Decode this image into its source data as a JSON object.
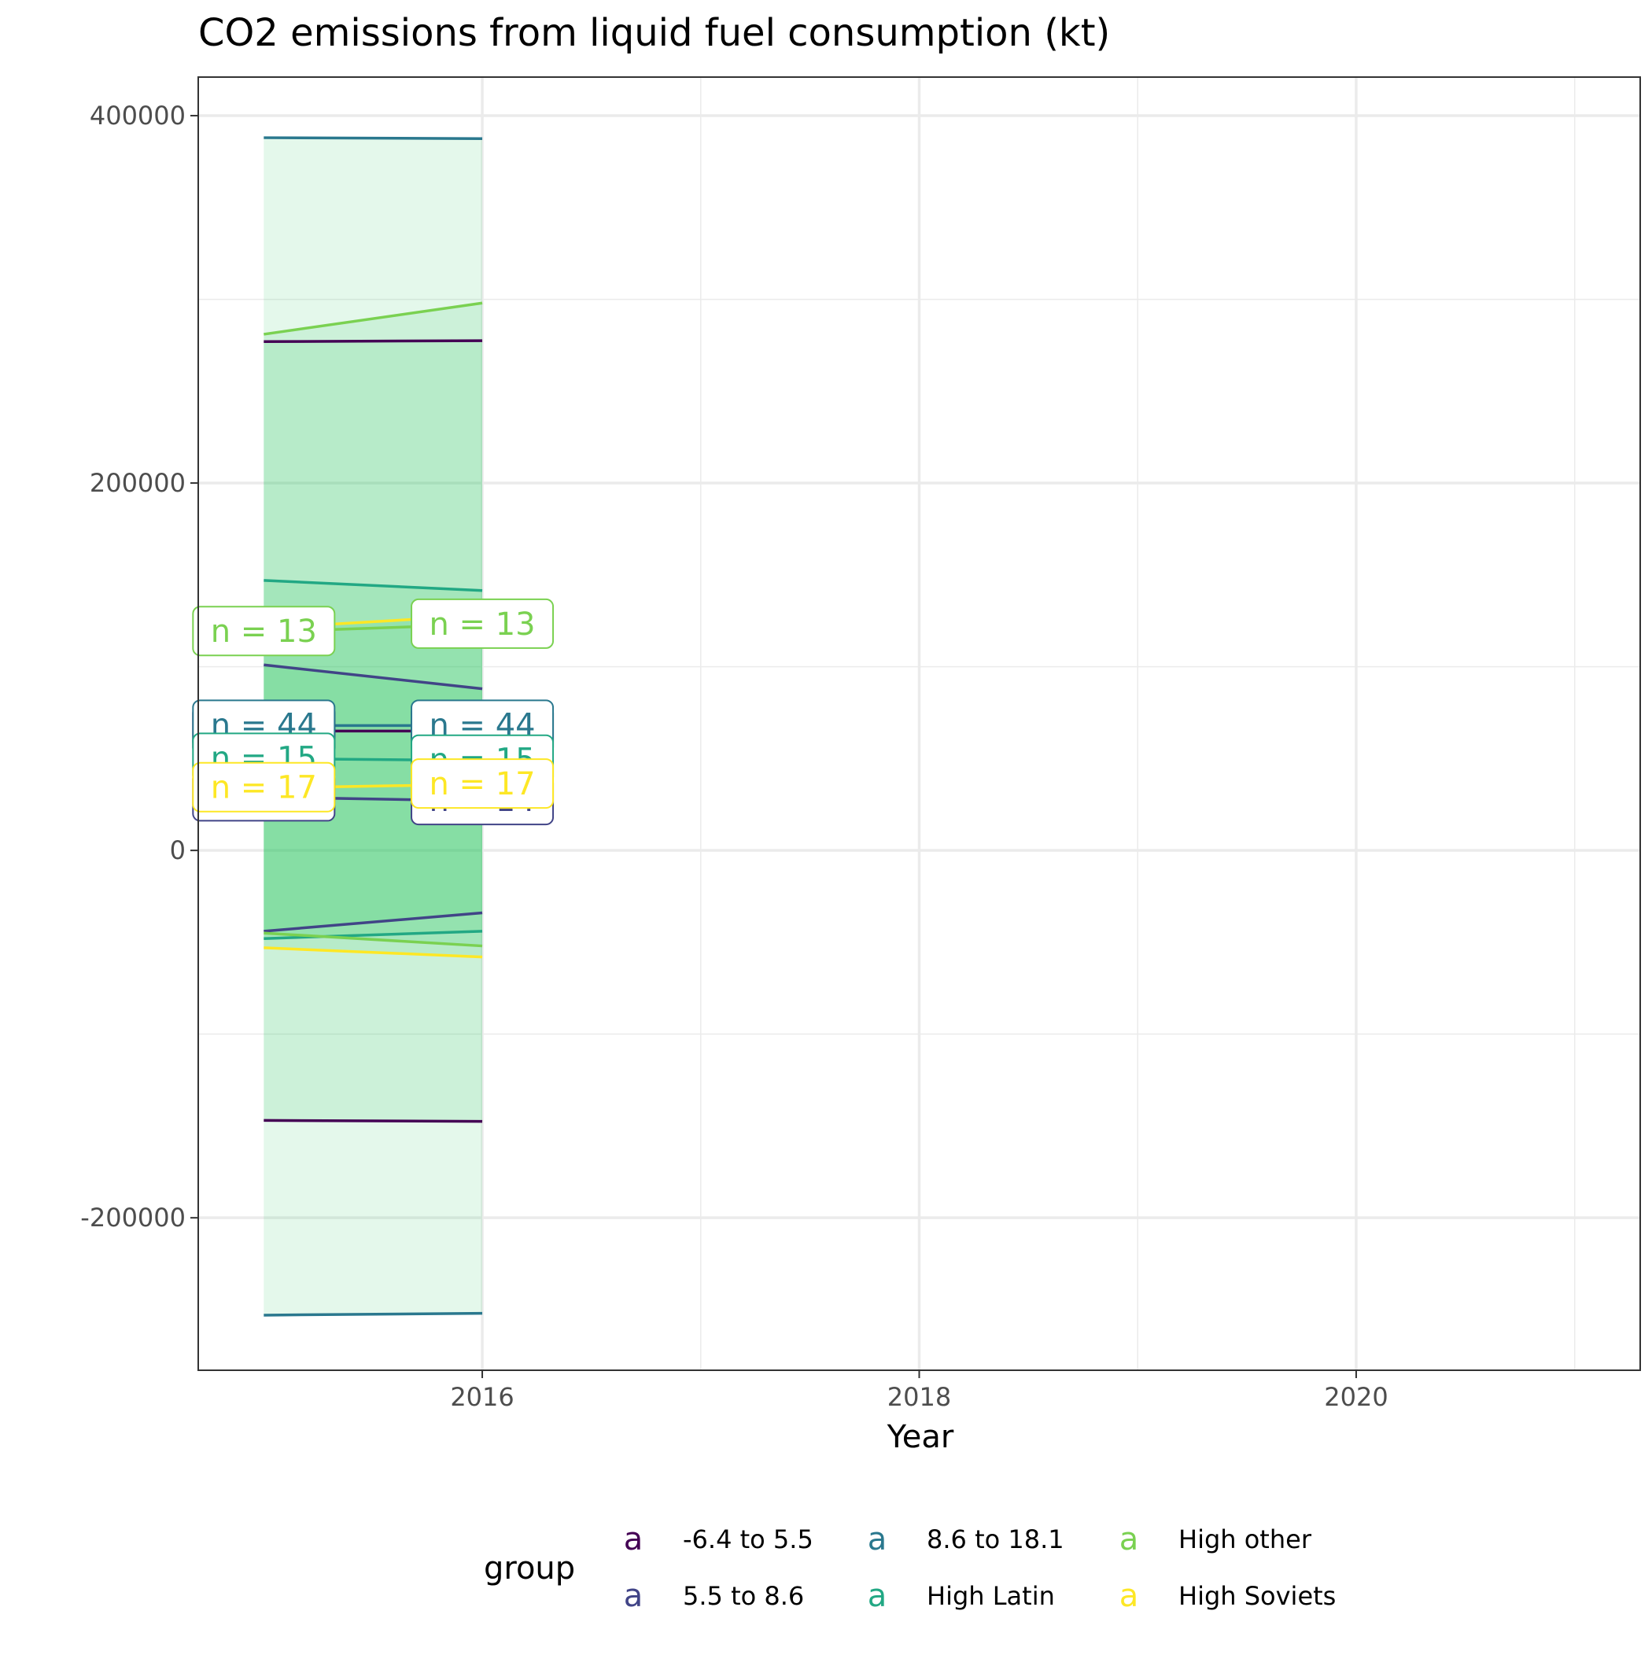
{
  "chart_data": {
    "type": "line",
    "title": "CO2 emissions from liquid fuel consumption (kt)",
    "xlabel": "Year",
    "ylabel": "",
    "xlim": [
      2014.7,
      2021.3
    ],
    "ylim": [
      -283000,
      421000
    ],
    "x_ticks": [
      2016,
      2018,
      2020
    ],
    "y_ticks": [
      -200000,
      0,
      200000,
      400000
    ],
    "x_minor": [
      2017,
      2019,
      2021
    ],
    "y_minor": [
      -100000,
      100000,
      300000
    ],
    "grid": true,
    "legend": {
      "title": "group",
      "position": "bottom",
      "glyph": "a"
    },
    "series": [
      {
        "name": "-6.4 to 5.5",
        "color": "#440154",
        "x": [
          2015,
          2016
        ],
        "mean": [
          65000,
          65000
        ],
        "lower": [
          -147000,
          -147500
        ],
        "upper": [
          277000,
          277500
        ],
        "label": "n = 15"
      },
      {
        "name": "5.5 to 8.6",
        "color": "#414487",
        "x": [
          2015,
          2016
        ],
        "mean": [
          29000,
          27000
        ],
        "lower": [
          -44000,
          -34000
        ],
        "upper": [
          101000,
          88000
        ],
        "label": "n = 14"
      },
      {
        "name": "8.6 to 18.1",
        "color": "#2A788E",
        "x": [
          2015,
          2016
        ],
        "mean": [
          68000,
          68000
        ],
        "lower": [
          -253000,
          -252000
        ],
        "upper": [
          388000,
          387500
        ],
        "label": "n = 44"
      },
      {
        "name": "High Latin",
        "color": "#22A884",
        "x": [
          2015,
          2016
        ],
        "mean": [
          50000,
          49000
        ],
        "lower": [
          -48000,
          -44000
        ],
        "upper": [
          147000,
          141500
        ],
        "label": "n = 15"
      },
      {
        "name": "High other",
        "color": "#7AD151",
        "x": [
          2015,
          2016
        ],
        "mean": [
          119000,
          123000
        ],
        "lower": [
          -45000,
          -52000
        ],
        "upper": [
          281000,
          298000
        ],
        "label": "n = 13"
      },
      {
        "name": "High Soviets",
        "color": "#FDE725",
        "x": [
          2015,
          2016
        ],
        "mean": [
          34000,
          36000
        ],
        "lower": [
          -53000,
          -58000
        ],
        "upper": [
          121000,
          128000
        ],
        "label": "n = 17"
      }
    ],
    "ribbon_fill": "#22C55E",
    "ribbon_opacity": 0.12
  }
}
